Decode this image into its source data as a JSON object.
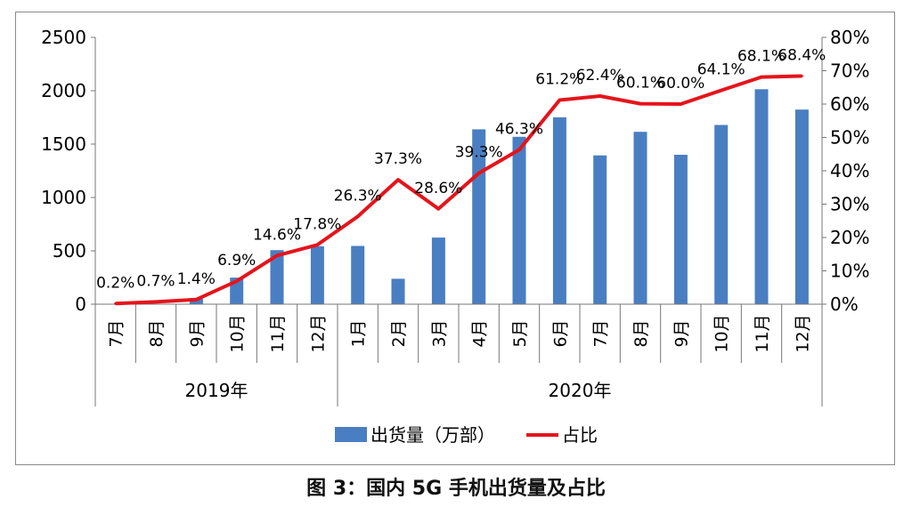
{
  "caption": "图 3：国内 5G 手机出货量及占比",
  "chart_data": {
    "type": "bar",
    "categories": [
      "7月",
      "8月",
      "9月",
      "10月",
      "11月",
      "12月",
      "1月",
      "2月",
      "3月",
      "4月",
      "5月",
      "6月",
      "7月",
      "8月",
      "9月",
      "10月",
      "11月",
      "12月"
    ],
    "groups": [
      {
        "label": "2019年",
        "count": 6
      },
      {
        "label": "2020年",
        "count": 12
      }
    ],
    "series": [
      {
        "name": "出货量（万部）",
        "type": "bar",
        "axis": "left",
        "color": "#4a7ec2",
        "values": [
          0,
          0,
          56,
          249,
          507,
          543,
          546,
          238,
          624,
          1638,
          1568,
          1751,
          1394,
          1615,
          1400,
          1679,
          2014,
          1823
        ]
      },
      {
        "name": "占比",
        "type": "line",
        "axis": "right",
        "color": "#e5141b",
        "values": [
          0.2,
          0.7,
          1.4,
          6.9,
          14.6,
          17.8,
          26.3,
          37.3,
          28.6,
          39.3,
          46.3,
          61.2,
          62.4,
          60.1,
          60.0,
          64.1,
          68.1,
          68.4
        ],
        "labels": [
          "0.2%",
          "0.7%",
          "1.4%",
          "6.9%",
          "14.6%",
          "17.8%",
          "26.3%",
          "37.3%",
          "28.6%",
          "39.3%",
          "46.3%",
          "61.2%",
          "62.4%",
          "60.1%",
          "60.0%",
          "64.1%",
          "68.1%",
          "68.4%"
        ]
      }
    ],
    "y_left": {
      "ylim": [
        0,
        2500
      ],
      "ticks": [
        "0",
        "500",
        "1000",
        "1500",
        "2000",
        "2500"
      ]
    },
    "y_right": {
      "ylim": [
        0,
        80
      ],
      "ticks": [
        "0%",
        "10%",
        "20%",
        "30%",
        "40%",
        "50%",
        "60%",
        "70%",
        "80%"
      ]
    },
    "grid": false,
    "legend_position": "bottom"
  }
}
